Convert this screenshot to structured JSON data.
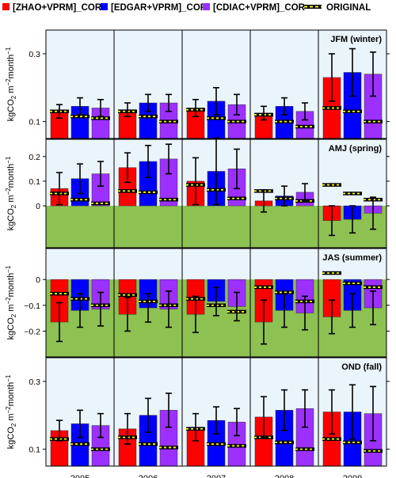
{
  "legend": {
    "items": [
      {
        "label": "[ZHAO+VPRM]_COR",
        "color": "#ff0000",
        "kind": "square"
      },
      {
        "label": "[EDGAR+VPRM]_COR",
        "color": "#0000ff",
        "kind": "square"
      },
      {
        "label": "[CDIAC+VPRM]_COR",
        "color": "#9b30ff",
        "kind": "square"
      },
      {
        "label": "ORIGINAL",
        "color": "#000000",
        "dash_color": "#ffff00",
        "kind": "dashline"
      }
    ]
  },
  "colors": {
    "panel_bg": "#eaf4fb",
    "negative_fill": "#8dc152",
    "original_line": "#000000",
    "original_dash": "#ffff00",
    "error_bar": "#000000"
  },
  "chart_data": {
    "type": "bar",
    "categories": [
      "2005",
      "2006",
      "2007",
      "2008",
      "2009"
    ],
    "ylabel": "kgCO2 m^-2 month^-1",
    "ylabel_parts": {
      "unit": "kgCO",
      "sub": "2",
      "mid": " m",
      "sup1": "−2",
      "tail": "month",
      "sup2": "−1"
    },
    "panels": [
      {
        "title": "JFM (winter)",
        "ylim": [
          0.05,
          0.37
        ],
        "yticks": [
          0.1,
          0.3
        ],
        "yticklabels": [
          "0.1",
          "0.3"
        ],
        "series": [
          {
            "name": "[ZHAO+VPRM]_COR",
            "values": [
              0.13,
              0.135,
              0.14,
              0.125,
              0.23
            ],
            "err": [
              0.02,
              0.02,
              0.025,
              0.02,
              0.07
            ]
          },
          {
            "name": "[EDGAR+VPRM]_COR",
            "values": [
              0.145,
              0.155,
              0.16,
              0.145,
              0.245
            ],
            "err": [
              0.025,
              0.025,
              0.04,
              0.025,
              0.07
            ]
          },
          {
            "name": "[CDIAC+VPRM]_COR",
            "values": [
              0.14,
              0.155,
              0.15,
              0.13,
              0.24
            ],
            "err": [
              0.025,
              0.025,
              0.03,
              0.025,
              0.065
            ]
          }
        ],
        "original": [
          [
            0.13,
            0.115,
            0.11
          ],
          [
            0.13,
            0.115,
            0.1
          ],
          [
            0.135,
            0.11,
            0.1
          ],
          [
            0.12,
            0.1,
            0.085
          ],
          [
            0.14,
            0.13,
            0.1
          ]
        ]
      },
      {
        "title": "AMJ (spring)",
        "ylim": [
          -0.17,
          0.27
        ],
        "yticks": [
          0,
          0.1,
          0.2
        ],
        "yticklabels": [
          "0",
          "0.1",
          "0.2"
        ],
        "series": [
          {
            "name": "[ZHAO+VPRM]_COR",
            "values": [
              0.07,
              0.155,
              0.1,
              0.02,
              -0.06
            ],
            "err": [
              0.065,
              0.06,
              0.095,
              0.045,
              0.06
            ]
          },
          {
            "name": "[EDGAR+VPRM]_COR",
            "values": [
              0.11,
              0.18,
              0.14,
              0.04,
              -0.055
            ],
            "err": [
              0.06,
              0.065,
              0.135,
              0.04,
              0.055
            ]
          },
          {
            "name": "[CDIAC+VPRM]_COR",
            "values": [
              0.13,
              0.19,
              0.15,
              0.055,
              -0.03
            ],
            "err": [
              0.05,
              0.06,
              0.08,
              0.035,
              0.065
            ]
          }
        ],
        "original": [
          [
            0.05,
            0.025,
            0.01
          ],
          [
            0.06,
            0.055,
            0.025
          ],
          [
            0.085,
            0.065,
            0.03
          ],
          [
            0.06,
            0.03,
            0.02
          ],
          [
            0.085,
            0.05,
            0.025
          ]
        ]
      },
      {
        "title": "JAS (summer)",
        "ylim": [
          -0.3,
          0.12
        ],
        "yticks": [
          -0.2,
          -0.1,
          0
        ],
        "yticklabels": [
          "−0.2",
          "−0.1",
          "0"
        ],
        "series": [
          {
            "name": "[ZHAO+VPRM]_COR",
            "values": [
              -0.165,
              -0.135,
              -0.135,
              -0.165,
              -0.145
            ],
            "err": [
              0.075,
              0.065,
              0.07,
              0.085,
              0.065
            ]
          },
          {
            "name": "[EDGAR+VPRM]_COR",
            "values": [
              -0.12,
              -0.11,
              -0.085,
              -0.12,
              -0.12
            ],
            "err": [
              0.065,
              0.055,
              0.055,
              0.065,
              0.065
            ]
          },
          {
            "name": "[CDIAC+VPRM]_COR",
            "values": [
              -0.115,
              -0.115,
              -0.105,
              -0.13,
              -0.11
            ],
            "err": [
              0.065,
              0.07,
              0.055,
              0.065,
              0.065
            ]
          }
        ],
        "original": [
          [
            -0.055,
            -0.075,
            -0.1
          ],
          [
            -0.06,
            -0.085,
            -0.1
          ],
          [
            -0.075,
            -0.1,
            -0.125
          ],
          [
            -0.03,
            -0.05,
            -0.085
          ],
          [
            0.025,
            -0.015,
            -0.03
          ]
        ]
      },
      {
        "title": "OND (fall)",
        "ylim": [
          0.05,
          0.37
        ],
        "yticks": [
          0.1,
          0.3
        ],
        "yticklabels": [
          "0.1",
          "0.3"
        ],
        "series": [
          {
            "name": "[ZHAO+VPRM]_COR",
            "values": [
              0.155,
              0.16,
              0.165,
              0.195,
              0.21
            ],
            "err": [
              0.03,
              0.045,
              0.04,
              0.06,
              0.065
            ]
          },
          {
            "name": "[EDGAR+VPRM]_COR",
            "values": [
              0.175,
              0.2,
              0.185,
              0.215,
              0.21
            ],
            "err": [
              0.04,
              0.05,
              0.04,
              0.06,
              0.08
            ]
          },
          {
            "name": "[CDIAC+VPRM]_COR",
            "values": [
              0.17,
              0.215,
              0.18,
              0.22,
              0.205
            ],
            "err": [
              0.035,
              0.05,
              0.04,
              0.055,
              0.08
            ]
          }
        ],
        "original": [
          [
            0.13,
            0.115,
            0.1
          ],
          [
            0.135,
            0.115,
            0.105
          ],
          [
            0.16,
            0.115,
            0.11
          ],
          [
            0.135,
            0.12,
            0.1
          ],
          [
            0.13,
            0.12,
            0.095
          ]
        ]
      }
    ]
  }
}
